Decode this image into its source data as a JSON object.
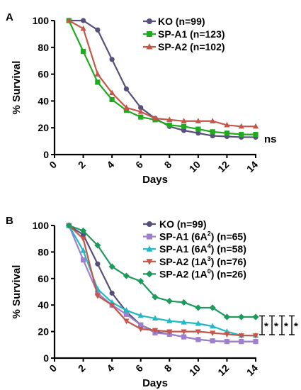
{
  "chart_data": [
    {
      "panel_label": "A",
      "type": "line",
      "xlabel": "Days",
      "ylabel": "% Survival",
      "xlim": [
        0,
        14
      ],
      "ylim": [
        0,
        100
      ],
      "xticks": [
        0,
        2,
        4,
        6,
        8,
        10,
        12,
        14
      ],
      "yticks": [
        0,
        20,
        40,
        60,
        80,
        100
      ],
      "annotation": "ns",
      "legend_position": "top-right",
      "series": [
        {
          "name": "KO (n=99)",
          "color": "#56507a",
          "marker": "circle",
          "x": [
            1,
            2,
            3,
            4,
            5,
            6,
            7,
            8,
            9,
            10,
            11,
            12,
            13,
            14
          ],
          "y": [
            100,
            100,
            93,
            71,
            49,
            35,
            27,
            21,
            18,
            16,
            14,
            13.5,
            13,
            13
          ]
        },
        {
          "name": "SP-A1 (n=123)",
          "color": "#1faa1f",
          "marker": "square",
          "x": [
            1,
            2,
            3,
            4,
            5,
            6,
            7,
            8,
            9,
            10,
            11,
            12,
            13,
            14
          ],
          "y": [
            100,
            77,
            54,
            41,
            33,
            28,
            26,
            22,
            21,
            19,
            17,
            16,
            15,
            15
          ]
        },
        {
          "name": "SP-A2 (n=102)",
          "color": "#c4574a",
          "marker": "triangle",
          "x": [
            1,
            2,
            3,
            4,
            5,
            6,
            7,
            8,
            9,
            10,
            11,
            12,
            13,
            14
          ],
          "y": [
            100,
            94,
            60,
            46,
            35,
            32,
            27,
            26,
            25,
            25,
            25,
            22,
            21,
            21
          ]
        }
      ]
    },
    {
      "panel_label": "B",
      "type": "line",
      "xlabel": "Days",
      "ylabel": "% Survival",
      "xlim": [
        0,
        14
      ],
      "ylim": [
        0,
        100
      ],
      "xticks": [
        0,
        2,
        4,
        6,
        8,
        10,
        12,
        14
      ],
      "yticks": [
        0,
        20,
        40,
        60,
        80,
        100
      ],
      "significance": [
        "*",
        "*",
        "*",
        "*"
      ],
      "legend_position": "top-right",
      "series": [
        {
          "name_parts": [
            "KO (n=99)"
          ],
          "color": "#56507a",
          "marker": "circle",
          "x": [
            1,
            2,
            3,
            4,
            5,
            6,
            7,
            8,
            9,
            10,
            11,
            12,
            13,
            14
          ],
          "y": [
            100,
            93,
            71,
            49,
            35,
            25,
            20,
            18,
            16,
            14,
            13,
            12.5,
            12.5,
            12.5
          ]
        },
        {
          "name_parts": [
            "SP-A1 (6A",
            "2",
            ") (n=65)"
          ],
          "color": "#9f80cf",
          "marker": "square",
          "x": [
            1,
            2,
            3,
            4,
            5,
            6,
            7,
            8,
            9,
            10,
            11,
            12,
            13,
            14
          ],
          "y": [
            100,
            74,
            49,
            40,
            33,
            25,
            19,
            18,
            16,
            14,
            13,
            12.5,
            12.5,
            12.5
          ]
        },
        {
          "name_parts": [
            "SP-A1 (6A",
            "4",
            ") (n=58)"
          ],
          "color": "#22b8c4",
          "marker": "triangle",
          "x": [
            1,
            2,
            3,
            4,
            5,
            6,
            7,
            8,
            9,
            10,
            11,
            12,
            13,
            14
          ],
          "y": [
            100,
            81,
            52,
            42,
            36,
            32,
            30,
            28,
            27,
            26,
            24,
            20,
            17,
            17
          ]
        },
        {
          "name_parts": [
            "SP-A2 (1A",
            "3",
            ") (n=76)"
          ],
          "color": "#c4574a",
          "marker": "invtriangle",
          "x": [
            1,
            2,
            3,
            4,
            5,
            6,
            7,
            8,
            9,
            10,
            11,
            12,
            13,
            14
          ],
          "y": [
            100,
            90,
            47,
            40,
            28,
            22,
            21,
            20,
            20,
            20,
            19,
            18,
            17,
            17
          ]
        },
        {
          "name_parts": [
            "SP-A2 (1A",
            "0",
            ") (n=26)"
          ],
          "color": "#1e9a5c",
          "marker": "diamond",
          "x": [
            1,
            2,
            3,
            4,
            5,
            6,
            7,
            8,
            9,
            10,
            11,
            12,
            13,
            14
          ],
          "y": [
            100,
            96,
            85,
            69,
            62,
            58,
            46,
            43,
            42,
            38,
            38,
            31,
            31,
            31
          ]
        }
      ]
    }
  ]
}
